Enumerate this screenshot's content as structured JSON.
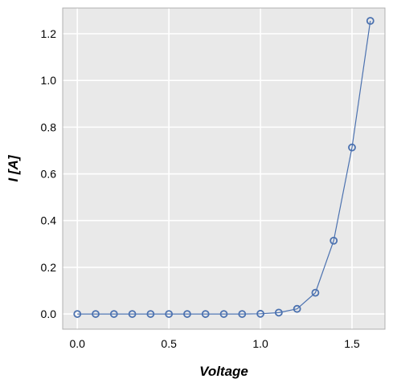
{
  "chart_data": {
    "type": "line",
    "title": "",
    "xlabel": "Voltage",
    "ylabel": "I [A]",
    "xlim": [
      -0.08,
      1.68
    ],
    "ylim": [
      -0.065,
      1.31
    ],
    "x_ticks": [
      0.0,
      0.5,
      1.0,
      1.5
    ],
    "x_tick_labels": [
      "0.0",
      "0.5",
      "1.0",
      "1.5"
    ],
    "y_ticks": [
      0.0,
      0.2,
      0.4,
      0.6,
      0.8,
      1.0,
      1.2
    ],
    "y_tick_labels": [
      "0.0",
      "0.2",
      "0.4",
      "0.6",
      "0.8",
      "1.0",
      "1.2"
    ],
    "grid": true,
    "legend": "none",
    "marker": "open-circle",
    "colors": {
      "series": "#4c72b0",
      "plot_background": "#e9e9e9",
      "grid": "#ffffff",
      "frame": "#b0b0b0"
    },
    "series": [
      {
        "x": [
          0.0,
          0.1,
          0.2,
          0.3,
          0.4,
          0.5,
          0.6,
          0.7,
          0.8,
          0.9,
          1.0,
          1.1,
          1.2,
          1.3,
          1.4,
          1.5,
          1.6
        ],
        "y": [
          0.0,
          0.0,
          0.0,
          0.0,
          0.0,
          0.0,
          0.0,
          0.0,
          0.0,
          0.0,
          0.001,
          0.006,
          0.022,
          0.091,
          0.314,
          0.713,
          1.255
        ]
      }
    ]
  }
}
